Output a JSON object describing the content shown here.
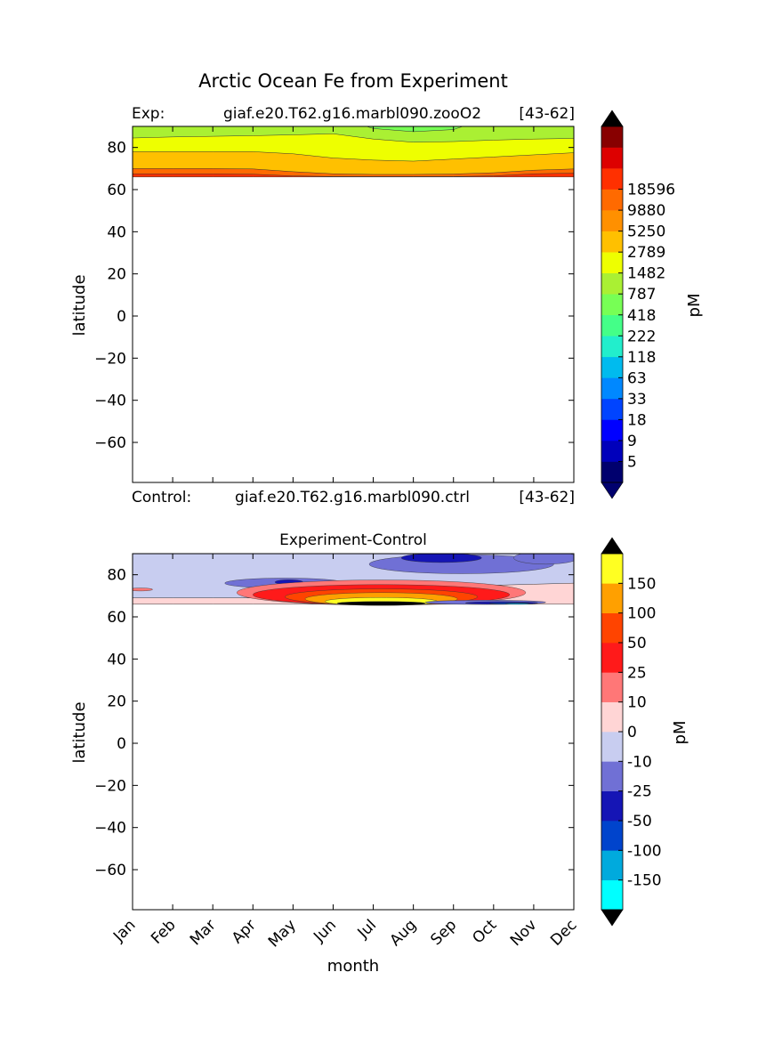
{
  "figure": {
    "title": "Arctic Ocean Fe from Experiment"
  },
  "chart_data": [
    {
      "type": "heatmap",
      "title": "",
      "header_left_label": "Exp:",
      "header_case": "giaf.e20.T62.g16.marbl090.zooO2",
      "header_range": "[43-62]",
      "footer_left_label": "Control:",
      "footer_case": "giaf.e20.T62.g16.marbl090.ctrl",
      "footer_range": "[43-62]",
      "xlabel": "",
      "ylabel": "latitude",
      "xlim": [
        0,
        11
      ],
      "ylim": [
        -79,
        90
      ],
      "yticks": [
        80,
        60,
        40,
        20,
        0,
        -20,
        -40,
        -60
      ],
      "ytick_labels": [
        "80",
        "60",
        "40",
        "20",
        "0",
        "−20",
        "−40",
        "−60"
      ],
      "x_labels_shown": false,
      "colorbar": {
        "label": "pM",
        "levels": [
          5,
          9,
          18,
          33,
          63,
          118,
          222,
          418,
          787,
          1482,
          2789,
          5250,
          9880,
          18596
        ],
        "level_labels": [
          "5",
          "9",
          "18",
          "33",
          "63",
          "118",
          "222",
          "418",
          "787",
          "1482",
          "2789",
          "5250",
          "9880",
          "18596"
        ],
        "colors": [
          "#00006e",
          "#0000bb",
          "#0000ff",
          "#0044ff",
          "#0088ff",
          "#00bbee",
          "#22eecc",
          "#44ff88",
          "#77ff55",
          "#aaf033",
          "#eeff00",
          "#ffc000",
          "#ff9000",
          "#ff6a00",
          "#ff3000",
          "#dd0000",
          "#880000"
        ],
        "extend": "both",
        "under_color": "#00006e",
        "over_color": "#000000"
      },
      "bands": [
        {
          "lower_y": [
            66,
            66,
            66,
            66,
            66,
            66,
            66,
            66,
            66,
            66,
            66,
            66
          ],
          "color": "#ff3000"
        },
        {
          "lower_y": [
            67.5,
            67.5,
            67.5,
            67.3,
            66.5,
            66.2,
            66.2,
            66.2,
            66.2,
            66.5,
            67.5,
            67.8
          ],
          "color": "#ff6a00"
        },
        {
          "lower_y": [
            70,
            70,
            70,
            69.8,
            68.5,
            67.5,
            67.2,
            67.2,
            67.4,
            68,
            69.2,
            69.8
          ],
          "color": "#ffc000"
        },
        {
          "lower_y": [
            78,
            78,
            78,
            78,
            77,
            75,
            74,
            73.5,
            74.5,
            75.5,
            76.5,
            77.5
          ],
          "color": "#eeff00"
        },
        {
          "lower_y": [
            84.5,
            85,
            85.3,
            85.6,
            86,
            86.5,
            84,
            82.5,
            82.8,
            83.5,
            84,
            84.3
          ],
          "color": "#aaf033"
        },
        {
          "lower_y": [
            95,
            95,
            95,
            95,
            95,
            95,
            89,
            87.5,
            88.5,
            95,
            95,
            95
          ],
          "color": "#77ff55"
        }
      ]
    },
    {
      "type": "heatmap",
      "title": "Experiment-Control",
      "xlabel": "month",
      "ylabel": "latitude",
      "xlim": [
        0,
        11
      ],
      "ylim": [
        -79,
        90
      ],
      "x": [
        "Jan",
        "Feb",
        "Mar",
        "Apr",
        "May",
        "Jun",
        "Jul",
        "Aug",
        "Sep",
        "Oct",
        "Nov",
        "Dec"
      ],
      "yticks": [
        80,
        60,
        40,
        20,
        0,
        -20,
        -40,
        -60
      ],
      "ytick_labels": [
        "80",
        "60",
        "40",
        "20",
        "0",
        "−20",
        "−40",
        "−60"
      ],
      "colorbar": {
        "label": "pM",
        "levels": [
          -150,
          -100,
          -50,
          -25,
          -10,
          0,
          10,
          25,
          50,
          100,
          150
        ],
        "level_labels": [
          "-150",
          "-100",
          "-50",
          "-25",
          "-10",
          "0",
          "10",
          "25",
          "50",
          "100",
          "150"
        ],
        "colors": [
          "#00ffff",
          "#00aadd",
          "#0044cc",
          "#1515b5",
          "#7070d5",
          "#c8cdf0",
          "#ffd5d5",
          "#ff7777",
          "#ff1a1a",
          "#ff4400",
          "#ffa000",
          "#ffff22"
        ],
        "extend": "both",
        "under_color": "#000000",
        "over_color": "#000000"
      },
      "base_color": "#c8cdf0",
      "bands": [
        {
          "lower_y": [
            66,
            66,
            66,
            66,
            66,
            66,
            66,
            66,
            66,
            66,
            66,
            66
          ],
          "color": "#ffd5d5"
        },
        {
          "lower_y": [
            69,
            69,
            69,
            69,
            69.5,
            72,
            74,
            74.5,
            74.5,
            75,
            75.5,
            76
          ],
          "color": "#c8cdf0"
        }
      ],
      "blobs": [
        {
          "color": "#7070d5",
          "cx": 8.2,
          "cy": 85,
          "rx": 2.3,
          "ry": 4.5
        },
        {
          "color": "#7070d5",
          "cx": 10.3,
          "cy": 88,
          "rx": 0.8,
          "ry": 3
        },
        {
          "color": "#1515b5",
          "cx": 7.7,
          "cy": 88,
          "rx": 1.0,
          "ry": 2.2
        },
        {
          "color": "#7070d5",
          "cx": 3.8,
          "cy": 76,
          "rx": 1.5,
          "ry": 2.4
        },
        {
          "color": "#1515b5",
          "cx": 3.9,
          "cy": 76.5,
          "rx": 0.35,
          "ry": 1.1
        },
        {
          "color": "#ff7777",
          "cx": 0.2,
          "cy": 73,
          "rx": 0.3,
          "ry": 0.7
        },
        {
          "color": "#ff7777",
          "cx": 6.2,
          "cy": 71.5,
          "rx": 3.6,
          "ry": 6.0
        },
        {
          "color": "#ff1a1a",
          "cx": 6.2,
          "cy": 70.5,
          "rx": 3.2,
          "ry": 4.8
        },
        {
          "color": "#ff4400",
          "cx": 6.2,
          "cy": 69.5,
          "rx": 2.4,
          "ry": 3.8
        },
        {
          "color": "#ffa000",
          "cx": 6.2,
          "cy": 68.5,
          "rx": 1.9,
          "ry": 3.0
        },
        {
          "color": "#ffff22",
          "cx": 6.2,
          "cy": 67.3,
          "rx": 1.4,
          "ry": 1.9
        },
        {
          "color": "#000000",
          "cx": 6.2,
          "cy": 66.4,
          "rx": 1.1,
          "ry": 0.9
        },
        {
          "color": "#7070d5",
          "cx": 8.8,
          "cy": 66.9,
          "rx": 1.5,
          "ry": 1.0
        },
        {
          "color": "#1515b5",
          "cx": 9.2,
          "cy": 66.6,
          "rx": 0.9,
          "ry": 0.6
        },
        {
          "color": "#0044cc",
          "cx": 9.4,
          "cy": 66.4,
          "rx": 0.5,
          "ry": 0.35
        },
        {
          "color": "#00aadd",
          "cx": 9.6,
          "cy": 66.2,
          "rx": 0.3,
          "ry": 0.25
        }
      ]
    }
  ]
}
